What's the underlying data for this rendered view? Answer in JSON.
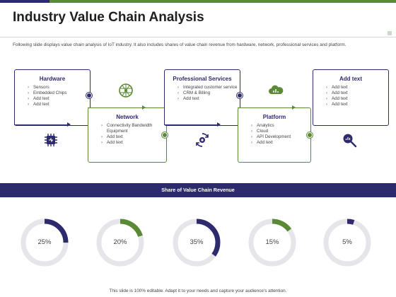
{
  "slide": {
    "title": "Industry Value Chain Analysis",
    "description": "Following slide displays value chain analysis of IoT industry. It also includes shares of value chain revenue from hardware, network, professional services and platform.",
    "footer": "This slide is 100% editable. Adapt it to your needs and capture your audience's attention."
  },
  "chain": {
    "hardware": {
      "heading": "Hardware",
      "items": [
        "Sensors",
        "Embedded Chips",
        "Add text",
        "Add text"
      ]
    },
    "network": {
      "heading": "Network",
      "items": [
        "Connectivity Bandwidth Equipment",
        "Add text",
        "Add text"
      ]
    },
    "professional": {
      "heading": "Professional Services",
      "items": [
        "Integrated customer service",
        "CRM & Billing",
        "Add text"
      ]
    },
    "platform": {
      "heading": "Platform",
      "items": [
        "Analytics",
        "Cloud",
        "API Development",
        "Add text"
      ]
    },
    "addtext": {
      "heading": "Add text",
      "items": [
        "Add text",
        "Add text",
        "Add text",
        "Add text"
      ]
    }
  },
  "revenue": {
    "heading": "Share of Value Chain Revenue",
    "shares": [
      {
        "value": 25,
        "label": "25%",
        "color": "#2e2a6e"
      },
      {
        "value": 20,
        "label": "20%",
        "color": "#5b8a35"
      },
      {
        "value": 35,
        "label": "35%",
        "color": "#2e2a6e"
      },
      {
        "value": 15,
        "label": "15%",
        "color": "#5b8a35"
      },
      {
        "value": 5,
        "label": "5%",
        "color": "#2e2a6e"
      }
    ],
    "track_color": "#e6e6ea"
  },
  "colors": {
    "navy": "#2e2a6e",
    "green": "#5b8a35"
  },
  "icons": [
    "chip-icon",
    "network-globe-icon",
    "gear-cycle-icon",
    "cloud-chart-icon",
    "magnify-chart-icon"
  ]
}
